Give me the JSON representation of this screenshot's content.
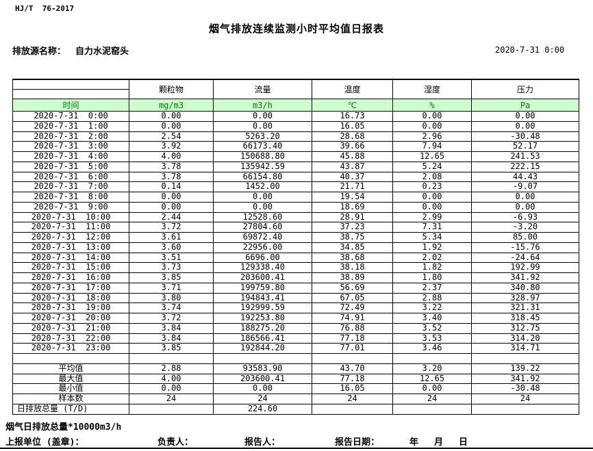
{
  "header": {
    "doc_code": "HJ/T  76-2017",
    "title": "烟气排放连续监测小时平均值日报表",
    "source_label": "排放源名称：",
    "source_name": "自力水泥窑头",
    "datetime": "2020-7-31 0:00"
  },
  "table": {
    "time_header": "时间",
    "columns": [
      "颗粒物",
      "流量",
      "温度",
      "湿度",
      "压力"
    ],
    "units": [
      "mg/m3",
      "m3/h",
      "℃",
      "%",
      "Pa"
    ],
    "rows": [
      {
        "time": "2020-7-31  0:00",
        "values": [
          "0.00",
          "0.00",
          "16.73",
          "0.00",
          "0.00"
        ]
      },
      {
        "time": "2020-7-31  1:00",
        "values": [
          "0.00",
          "0.00",
          "16.05",
          "0.00",
          "0.00"
        ]
      },
      {
        "time": "2020-7-31  2:00",
        "values": [
          "2.54",
          "5263.20",
          "28.68",
          "2.96",
          "-30.48"
        ]
      },
      {
        "time": "2020-7-31  3:00",
        "values": [
          "3.92",
          "66173.40",
          "39.66",
          "7.94",
          "52.17"
        ]
      },
      {
        "time": "2020-7-31  4:00",
        "values": [
          "4.00",
          "150688.80",
          "45.88",
          "12.65",
          "241.53"
        ]
      },
      {
        "time": "2020-7-31  5:00",
        "values": [
          "3.78",
          "135942.59",
          "43.87",
          "5.24",
          "222.15"
        ]
      },
      {
        "time": "2020-7-31  6:00",
        "values": [
          "3.78",
          "66154.80",
          "40.37",
          "2.08",
          "44.43"
        ]
      },
      {
        "time": "2020-7-31  7:00",
        "values": [
          "0.14",
          "1452.00",
          "21.71",
          "0.23",
          "-9.07"
        ]
      },
      {
        "time": "2020-7-31  8:00",
        "values": [
          "0.00",
          "0.00",
          "19.54",
          "0.00",
          "0.00"
        ]
      },
      {
        "time": "2020-7-31  9:00",
        "values": [
          "0.00",
          "0.00",
          "18.69",
          "0.00",
          "0.00"
        ]
      },
      {
        "time": "2020-7-31  10:00",
        "values": [
          "2.44",
          "12528.60",
          "28.91",
          "2.99",
          "-6.93"
        ]
      },
      {
        "time": "2020-7-31  11:00",
        "values": [
          "3.72",
          "27804.60",
          "37.23",
          "7.31",
          "-3.20"
        ]
      },
      {
        "time": "2020-7-31  12:00",
        "values": [
          "3.61",
          "69872.40",
          "38.75",
          "5.34",
          "85.00"
        ]
      },
      {
        "time": "2020-7-31  13:00",
        "values": [
          "3.60",
          "22956.00",
          "34.85",
          "1.92",
          "-15.76"
        ]
      },
      {
        "time": "2020-7-31  14:00",
        "values": [
          "3.51",
          "6696.00",
          "38.68",
          "2.02",
          "-24.64"
        ]
      },
      {
        "time": "2020-7-31  15:00",
        "values": [
          "3.73",
          "129338.40",
          "38.18",
          "1.82",
          "192.99"
        ]
      },
      {
        "time": "2020-7-31  16:00",
        "values": [
          "3.85",
          "203600.41",
          "38.89",
          "1.80",
          "341.92"
        ]
      },
      {
        "time": "2020-7-31  17:00",
        "values": [
          "3.71",
          "199759.80",
          "56.69",
          "2.37",
          "340.80"
        ]
      },
      {
        "time": "2020-7-31  18:00",
        "values": [
          "3.80",
          "194843.41",
          "67.05",
          "2.88",
          "328.97"
        ]
      },
      {
        "time": "2020-7-31  19:00",
        "values": [
          "3.74",
          "192999.59",
          "72.49",
          "3.22",
          "321.31"
        ]
      },
      {
        "time": "2020-7-31  20:00",
        "values": [
          "3.72",
          "192253.80",
          "74.91",
          "3.40",
          "318.45"
        ]
      },
      {
        "time": "2020-7-31  21:00",
        "values": [
          "3.84",
          "188275.20",
          "76.88",
          "3.52",
          "312.75"
        ]
      },
      {
        "time": "2020-7-31  22:00",
        "values": [
          "3.84",
          "186566.41",
          "77.18",
          "3.53",
          "314.20"
        ]
      },
      {
        "time": "2020-7-31  23:00",
        "values": [
          "3.85",
          "192844.20",
          "77.01",
          "3.46",
          "314.71"
        ]
      }
    ],
    "summary": [
      {
        "label": "平均值",
        "values": [
          "2.88",
          "93583.90",
          "43.70",
          "3.20",
          "139.22"
        ]
      },
      {
        "label": "最大值",
        "values": [
          "4.00",
          "203600.41",
          "77.18",
          "12.65",
          "341.92"
        ]
      },
      {
        "label": "最小值",
        "values": [
          "0.00",
          "0.00",
          "16.05",
          "0.00",
          "-30.48"
        ]
      },
      {
        "label": "样本数",
        "values": [
          "24",
          "24",
          "24",
          "24",
          "24"
        ]
      },
      {
        "label": "日排放总量 (T/D)",
        "values": [
          "",
          "224.60",
          "",
          "",
          ""
        ]
      }
    ]
  },
  "footer": {
    "note": "烟气日排放总量*10000m3/h",
    "report_unit_label": "上报单位 (盖章)：",
    "responsible_label": "负责人：",
    "reporter_label": "报告人：",
    "report_date_label": "报告日期：",
    "year_label": "年",
    "month_label": "月",
    "day_label": "日"
  }
}
